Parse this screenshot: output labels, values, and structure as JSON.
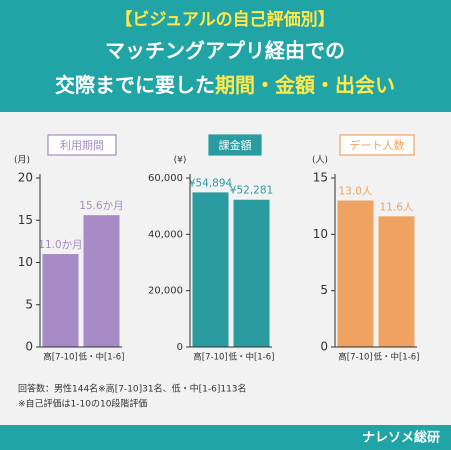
{
  "header": {
    "line1": "【ビジュアルの自己評価別】",
    "line2": "マッチングアプリ経由での",
    "line3a": "交際までに要した",
    "line3b": "期間・金額・出会い"
  },
  "chart_data": [
    {
      "type": "bar",
      "title": "利用期間",
      "y_unit": "(月)",
      "categories": [
        "高[7-10]",
        "低・中[1-6]"
      ],
      "values": [
        11.0,
        15.6
      ],
      "value_labels": [
        "11.0か月",
        "15.6か月"
      ],
      "color": "#a68bc6",
      "ylim": [
        0,
        20
      ],
      "yticks": [
        0,
        5,
        10,
        15,
        20
      ]
    },
    {
      "type": "bar",
      "title": "課金額",
      "y_unit": "(¥)",
      "categories": [
        "高[7-10]",
        "低・中[1-6]"
      ],
      "values": [
        54894,
        52281
      ],
      "value_labels": [
        "¥54,894",
        "¥52,281"
      ],
      "color": "#2a9ca0",
      "ylim": [
        0,
        60000
      ],
      "yticks": [
        0,
        {
          "value": 20000,
          "label": "20,000"
        },
        {
          "value": 40000,
          "label": "40,000"
        },
        {
          "value": 60000,
          "label": "60,000"
        }
      ]
    },
    {
      "type": "bar",
      "title": "デート人数",
      "y_unit": "(人)",
      "categories": [
        "高[7-10]",
        "低・中[1-6]"
      ],
      "values": [
        13.0,
        11.6
      ],
      "value_labels": [
        "13.0人",
        "11.6人"
      ],
      "color": "#f0a262",
      "ylim": [
        0,
        15
      ],
      "yticks": [
        0,
        5,
        10,
        15
      ]
    }
  ],
  "footnotes": [
    "回答数：男性144名※高[7-10]31名、低・中[1-6]113名",
    "※自己評価は1-10の10段階評価"
  ],
  "brand": "ナレソメ総研"
}
